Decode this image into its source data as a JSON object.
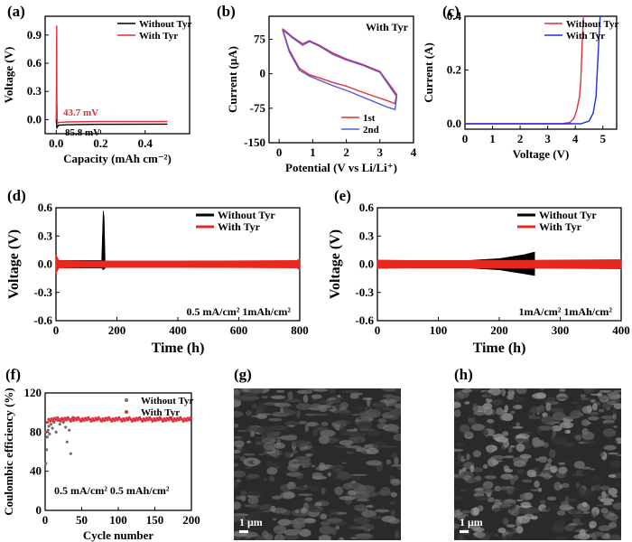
{
  "chart_data": [
    {
      "panel": "(a)",
      "type": "line",
      "xlabel": "Capacity (mAh cm⁻²)",
      "ylabel": "Voltage (V)",
      "xlim": [
        -0.05,
        0.6
      ],
      "ylim": [
        -0.15,
        1.1
      ],
      "xticks": [
        "0.0",
        "0.2",
        "0.4"
      ],
      "yticks": [
        "0.0",
        "0.3",
        "0.6",
        "0.9"
      ],
      "series": [
        {
          "name": "Without Tyr",
          "color": "#000000",
          "x": [
            0,
            0.003,
            0.01,
            0.05,
            0.2,
            0.5
          ],
          "y": [
            0,
            -0.0858,
            -0.06,
            -0.055,
            -0.05,
            -0.048
          ]
        },
        {
          "name": "With Tyr",
          "color": "#e0303a",
          "x": [
            0,
            0.002,
            0.003,
            0.005,
            0.01,
            0.05,
            0.2,
            0.5
          ],
          "y": [
            0,
            1.0,
            0.2,
            -0.0437,
            -0.03,
            -0.025,
            -0.02,
            -0.02
          ]
        }
      ],
      "annotations": [
        {
          "text": "43.7 mV",
          "color": "#e0303a"
        },
        {
          "text": "85.8 mV",
          "color": "#000000"
        }
      ]
    },
    {
      "panel": "(b)",
      "type": "line",
      "title": "With Tyr",
      "xlabel": "Potential (V vs Li/Li⁺)",
      "ylabel": "Current (μA)",
      "xlim": [
        -0.3,
        4
      ],
      "ylim": [
        -150,
        125
      ],
      "xticks": [
        "0",
        "1",
        "2",
        "3",
        "4"
      ],
      "yticks": [
        "-150",
        "-75",
        "0",
        "75"
      ],
      "series": [
        {
          "name": "1st",
          "color": "#e0303a",
          "x": [
            0.1,
            0.4,
            0.7,
            0.9,
            1.2,
            1.6,
            2.0,
            2.5,
            3.0,
            3.5,
            3.45,
            3.2,
            2.8,
            2.4,
            2.0,
            1.6,
            1.2,
            0.9,
            0.6,
            0.3,
            0.1
          ],
          "y": [
            98,
            80,
            65,
            72,
            62,
            45,
            32,
            20,
            5,
            -45,
            -65,
            -58,
            -48,
            -38,
            -27,
            -19,
            -9,
            -2,
            12,
            52,
            98
          ]
        },
        {
          "name": "2nd",
          "color": "#5a5ad8",
          "x": [
            0.1,
            0.4,
            0.7,
            0.9,
            1.2,
            1.6,
            2.0,
            2.5,
            3.0,
            3.5,
            3.45,
            3.2,
            2.8,
            2.4,
            2.0,
            1.6,
            1.2,
            0.9,
            0.6,
            0.3,
            0.1
          ],
          "y": [
            96,
            78,
            62,
            70,
            60,
            42,
            30,
            18,
            3,
            -50,
            -78,
            -72,
            -60,
            -48,
            -36,
            -26,
            -14,
            -5,
            8,
            48,
            96
          ]
        }
      ]
    },
    {
      "panel": "(c)",
      "type": "line",
      "xlabel": "Voltage (V)",
      "ylabel": "Current (A)",
      "xlim": [
        0,
        5.5
      ],
      "ylim": [
        -0.02,
        0.4
      ],
      "xticks": [
        "0",
        "1",
        "2",
        "3",
        "4",
        "5"
      ],
      "yticks": [
        "0.0",
        "0.2",
        "0.4"
      ],
      "series": [
        {
          "name": "Without Tyr",
          "color": "#e0303a",
          "x": [
            0,
            3.5,
            3.8,
            3.95,
            4.05,
            4.15,
            4.2,
            4.25,
            4.3
          ],
          "y": [
            0,
            0,
            0.005,
            0.02,
            0.05,
            0.1,
            0.16,
            0.3,
            0.4
          ]
        },
        {
          "name": "With Tyr",
          "color": "#2030d8",
          "x": [
            0,
            4.2,
            4.5,
            4.65,
            4.75,
            4.8,
            4.85,
            4.9
          ],
          "y": [
            0,
            0,
            0.01,
            0.04,
            0.1,
            0.2,
            0.3,
            0.4
          ]
        }
      ]
    },
    {
      "panel": "(d)",
      "type": "line",
      "xlabel": "Time (h)",
      "ylabel": "Voltage (V)",
      "xlim": [
        0,
        800
      ],
      "ylim": [
        -0.6,
        0.6
      ],
      "xticks": [
        "0",
        "200",
        "400",
        "600",
        "800"
      ],
      "yticks": [
        "-0.6",
        "-0.3",
        "0.0",
        "0.3",
        "0.6"
      ],
      "series": [
        {
          "name": "Without Tyr",
          "color": "#000000",
          "x": [
            0,
            150,
            155,
            158,
            162
          ],
          "y": [
            0.04,
            0.04,
            0.57,
            0.5,
            -0.05
          ],
          "y_neg": [
            -0.04,
            -0.04,
            -0.06,
            -0.05,
            -0.03
          ]
        },
        {
          "name": "With Tyr",
          "color": "#e8281e",
          "x": [
            0,
            10,
            100,
            400,
            790,
            800
          ],
          "y": [
            0.1,
            0.04,
            0.035,
            0.035,
            0.04,
            0.06
          ],
          "y_neg": [
            -0.1,
            -0.04,
            -0.035,
            -0.035,
            -0.04,
            -0.06
          ]
        }
      ],
      "annotations": [
        {
          "text": "0.5 mA/cm² 1mAh/cm²"
        }
      ]
    },
    {
      "panel": "(e)",
      "type": "line",
      "xlabel": "Time (h)",
      "ylabel": "Voltage (V)",
      "xlim": [
        0,
        400
      ],
      "ylim": [
        -0.6,
        0.6
      ],
      "xticks": [
        "0",
        "100",
        "200",
        "300",
        "400"
      ],
      "yticks": [
        "-0.6",
        "-0.3",
        "0.0",
        "0.3",
        "0.6"
      ],
      "series": [
        {
          "name": "Without Tyr",
          "color": "#000000",
          "x": [
            0,
            150,
            200,
            240,
            258
          ],
          "y": [
            0.04,
            0.04,
            0.06,
            0.1,
            0.13
          ],
          "y_neg": [
            -0.04,
            -0.04,
            -0.06,
            -0.1,
            -0.12
          ]
        },
        {
          "name": "With Tyr",
          "color": "#e8281e",
          "x": [
            0,
            50,
            200,
            300,
            400
          ],
          "y": [
            0.045,
            0.04,
            0.04,
            0.045,
            0.05
          ],
          "y_neg": [
            -0.045,
            -0.04,
            -0.04,
            -0.045,
            -0.05
          ]
        }
      ],
      "annotations": [
        {
          "text": "1mA/cm² 1mAh/cm²"
        }
      ]
    },
    {
      "panel": "(f)",
      "type": "scatter",
      "xlabel": "Cycle number",
      "ylabel": "Coulombic efficiency (%)",
      "xlim": [
        0,
        200
      ],
      "ylim": [
        0,
        120
      ],
      "xticks": [
        "0",
        "50",
        "100",
        "150",
        "200"
      ],
      "yticks": [
        "0",
        "40",
        "80",
        "120"
      ],
      "series": [
        {
          "name": "Without Tyr",
          "color": "#707070",
          "x": [
            1,
            2,
            3,
            4,
            5,
            6,
            8,
            10,
            12,
            15,
            18,
            20,
            23,
            25,
            28,
            30,
            33,
            35,
            38
          ],
          "y": [
            48,
            62,
            75,
            82,
            86,
            78,
            88,
            84,
            90,
            80,
            92,
            88,
            94,
            90,
            85,
            70,
            82,
            58,
            95
          ]
        },
        {
          "name": "With Tyr",
          "color": "#e0303a",
          "x_range": [
            1,
            200
          ],
          "y_first": [
            80,
            85,
            90
          ],
          "y_steady": 93
        }
      ],
      "annotations": [
        {
          "text": "0.5 mA/cm²   0.5 mAh/cm²"
        }
      ]
    }
  ],
  "images": [
    {
      "panel": "(g)",
      "scale_bar": "1 μm"
    },
    {
      "panel": "(h)",
      "scale_bar": "1 μm"
    }
  ]
}
